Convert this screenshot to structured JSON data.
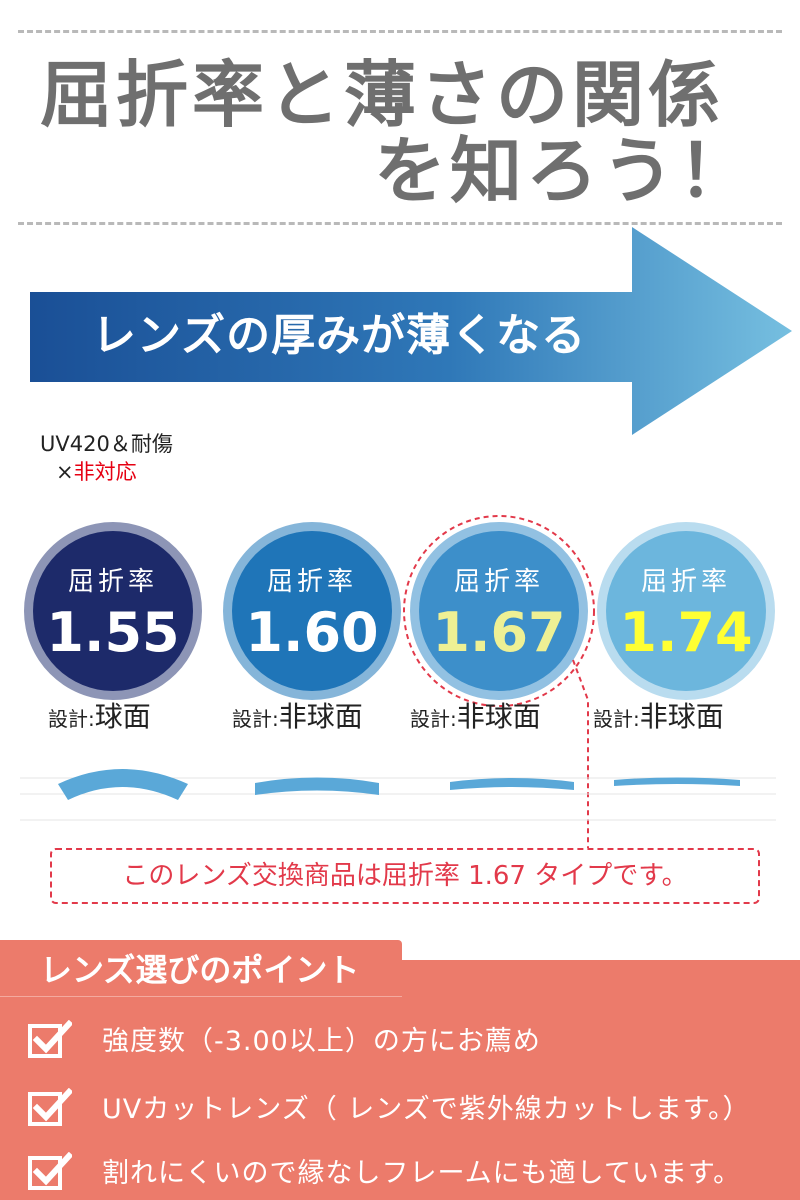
{
  "title": {
    "line1": "屈折率と薄さの関係",
    "line2": "を知ろう！"
  },
  "arrow": {
    "text": "レンズの厚みが薄くなる"
  },
  "note": {
    "line1": "UV420＆耐傷",
    "mark": "×",
    "line2": "非対応"
  },
  "lenses": [
    {
      "label": "屈折率",
      "index": "1.55",
      "design_key": "設計",
      "design_value": "球面"
    },
    {
      "label": "屈折率",
      "index": "1.60",
      "design_key": "設計",
      "design_value": "非球面"
    },
    {
      "label": "屈折率",
      "index": "1.67",
      "design_key": "設計",
      "design_value": "非球面"
    },
    {
      "label": "屈折率",
      "index": "1.74",
      "design_key": "設計",
      "design_value": "非球面"
    }
  ],
  "callout": "このレンズ交換商品は屈折率 1.67 タイプです。",
  "points": {
    "title": "レンズ選びのポイント",
    "items": [
      "強度数（-3.00以上）の方にお薦め",
      "UVカットレンズ（ レンズで紫外線カットします。）",
      "割れにくいので縁なしフレームにも適しています。"
    ]
  },
  "colors": {
    "arrow_dark": "#1a4f96",
    "arrow_light": "#6db8dc",
    "callout_red": "#e2394a",
    "points_bg": "#ec7b6b"
  }
}
